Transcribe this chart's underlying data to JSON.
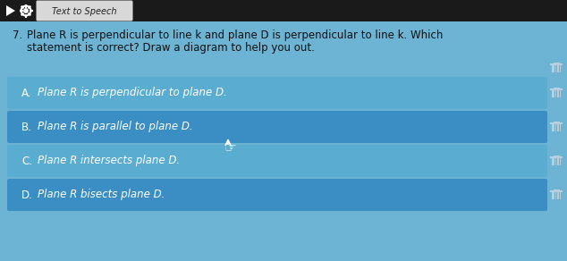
{
  "bg_color": "#6db3d4",
  "header_bg": "#1a1a1a",
  "header_tab_bg": "#d8d8d8",
  "header_tab_text": "Text to Speech",
  "question_number": "7.",
  "question_text_line1": "Plane R is perpendicular to line k and plane D is perpendicular to line k. Which",
  "question_text_line2": "statement is correct? Draw a diagram to help you out.",
  "options": [
    {
      "label": "A",
      "text": "Plane R is perpendicular to plane D.",
      "darker": false
    },
    {
      "label": "B",
      "text": "Plane R is parallel to plane D.",
      "darker": true
    },
    {
      "label": "C",
      "text": "Plane R intersects plane D.",
      "darker": false
    },
    {
      "label": "D",
      "text": "Plane R bisects plane D.",
      "darker": true
    }
  ],
  "row_color_light": "#5aadd1",
  "row_color_dark": "#3b8ec4",
  "option_text_color": "#ffffff",
  "question_text_color": "#111111",
  "figsize": [
    6.34,
    2.92
  ],
  "dpi": 100
}
